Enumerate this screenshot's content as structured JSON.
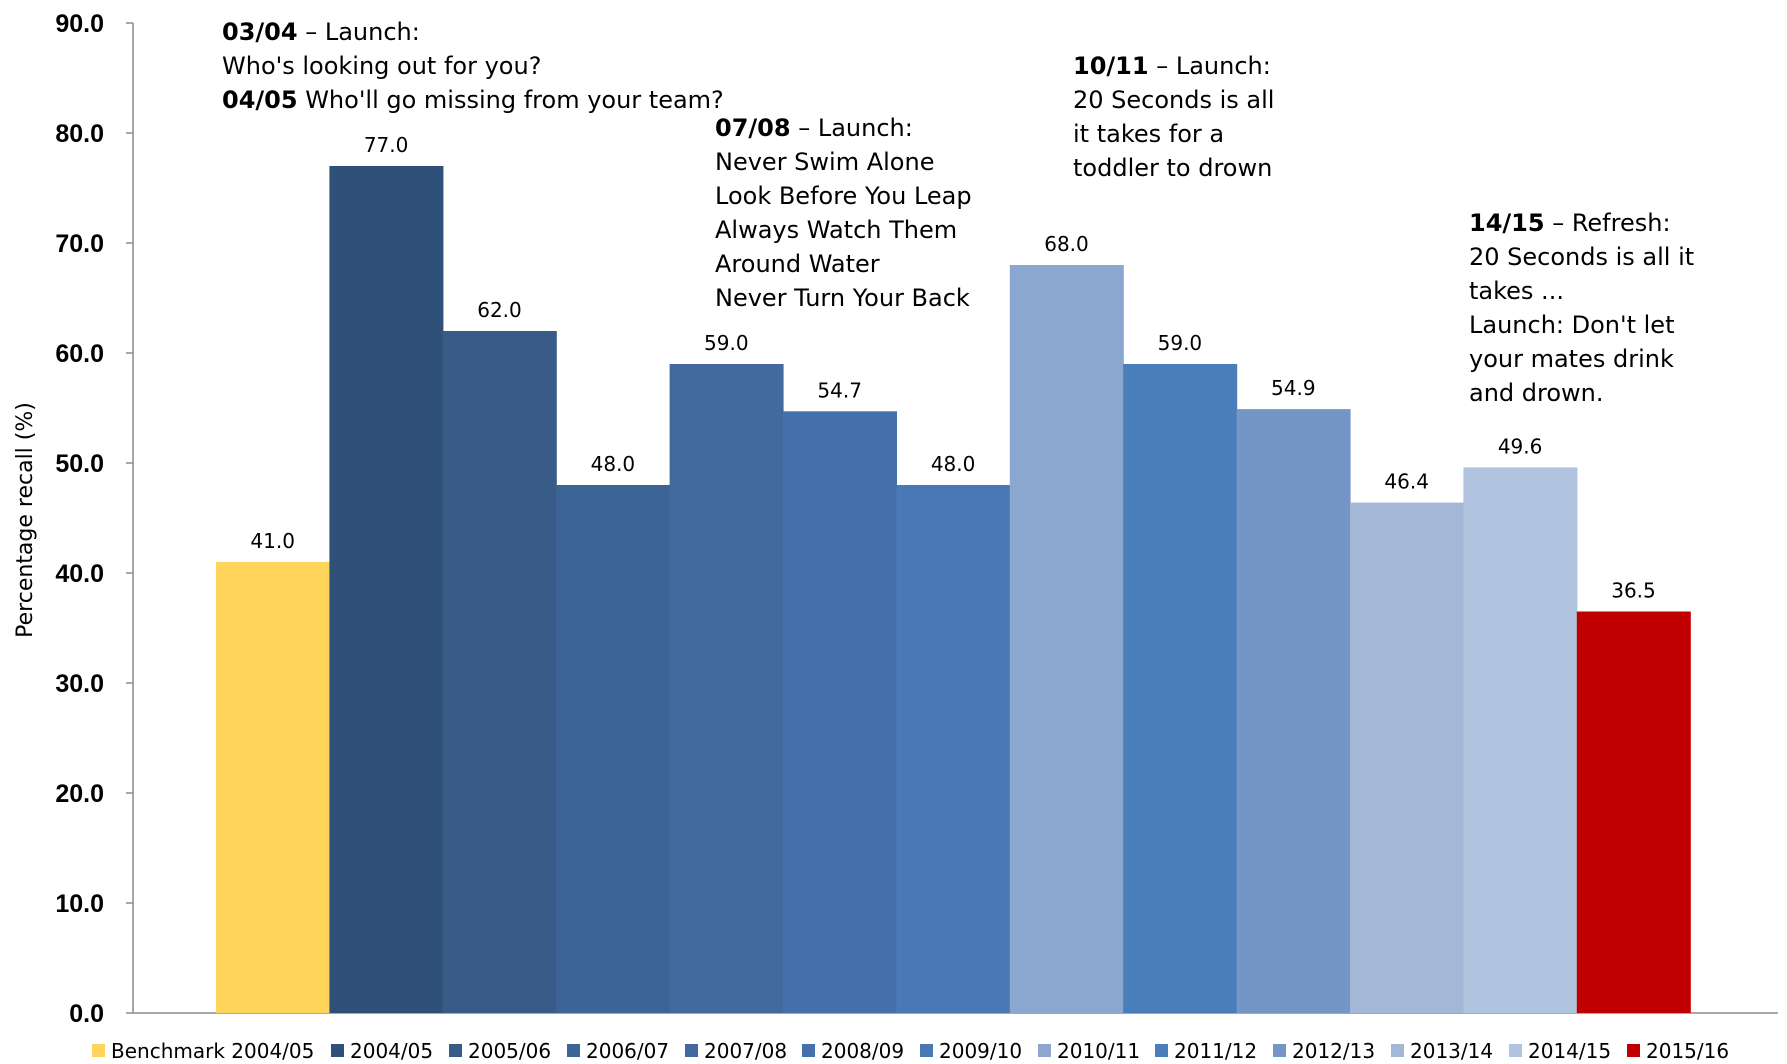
{
  "chart_data": {
    "type": "bar",
    "title": "",
    "xlabel": "",
    "ylabel": "Percentage recall (%)",
    "ylim": [
      0,
      90
    ],
    "yticks": [
      "0.0",
      "10.0",
      "20.0",
      "30.0",
      "40.0",
      "50.0",
      "60.0",
      "70.0",
      "80.0",
      "90.0"
    ],
    "grid": false,
    "legend_position": "bottom",
    "categories": [
      "Benchmark 2004/05",
      "2004/05",
      "2005/06",
      "2006/07",
      "2007/08",
      "2008/09",
      "2009/10",
      "2010/11",
      "2011/12",
      "2012/13",
      "2013/14",
      "2014/15",
      "2015/16"
    ],
    "series": [
      {
        "name": "Benchmark 2004/05",
        "value": 41.0,
        "label": "41.0",
        "color": "#FFD45A"
      },
      {
        "name": "2004/05",
        "value": 77.0,
        "label": "77.0",
        "color": "#2F5078"
      },
      {
        "name": "2005/06",
        "value": 62.0,
        "label": "62.0",
        "color": "#385B88"
      },
      {
        "name": "2006/07",
        "value": 48.0,
        "label": "48.0",
        "color": "#3D6496"
      },
      {
        "name": "2007/08",
        "value": 59.0,
        "label": "59.0",
        "color": "#4269A0"
      },
      {
        "name": "2008/09",
        "value": 54.7,
        "label": "54.7",
        "color": "#4670A9"
      },
      {
        "name": "2009/10",
        "value": 48.0,
        "label": "48.0",
        "color": "#4978B5"
      },
      {
        "name": "2010/11",
        "value": 68.0,
        "label": "68.0",
        "color": "#8CA7CF"
      },
      {
        "name": "2011/12",
        "value": 59.0,
        "label": "59.0",
        "color": "#4A7EBB"
      },
      {
        "name": "2012/13",
        "value": 54.9,
        "label": "54.9",
        "color": "#7496C6"
      },
      {
        "name": "2013/14",
        "value": 46.4,
        "label": "46.4",
        "color": "#A3B7D7"
      },
      {
        "name": "2014/15",
        "value": 49.6,
        "label": "49.6",
        "color": "#B0C3DF"
      },
      {
        "name": "2015/16",
        "value": 36.5,
        "label": "36.5",
        "color": "#C00000"
      }
    ],
    "annotations": [
      {
        "lines": [
          {
            "bold": "03/04",
            "text": " – Launch:"
          },
          {
            "bold": "",
            "text": "Who's looking out for you?"
          },
          {
            "bold": "04/05",
            "text": " Who'll go missing from your team?"
          }
        ]
      },
      {
        "lines": [
          {
            "bold": "07/08",
            "text": " – Launch:"
          },
          {
            "bold": "",
            "text": "Never Swim Alone"
          },
          {
            "bold": "",
            "text": "Look Before You Leap"
          },
          {
            "bold": "",
            "text": "Always Watch Them"
          },
          {
            "bold": "",
            "text": "Around Water"
          },
          {
            "bold": "",
            "text": "Never Turn Your Back"
          }
        ]
      },
      {
        "lines": [
          {
            "bold": "10/11",
            "text": " – Launch:"
          },
          {
            "bold": "",
            "text": "20 Seconds is all"
          },
          {
            "bold": "",
            "text": "it takes for a"
          },
          {
            "bold": "",
            "text": "toddler to drown"
          }
        ]
      },
      {
        "lines": [
          {
            "bold": "14/15",
            "text": " – Refresh:"
          },
          {
            "bold": "",
            "text": "20 Seconds is all it"
          },
          {
            "bold": "",
            "text": "takes ..."
          },
          {
            "bold": "",
            "text": "Launch: Don't let"
          },
          {
            "bold": "",
            "text": "your mates drink"
          },
          {
            "bold": "",
            "text": "and drown."
          }
        ]
      }
    ]
  }
}
